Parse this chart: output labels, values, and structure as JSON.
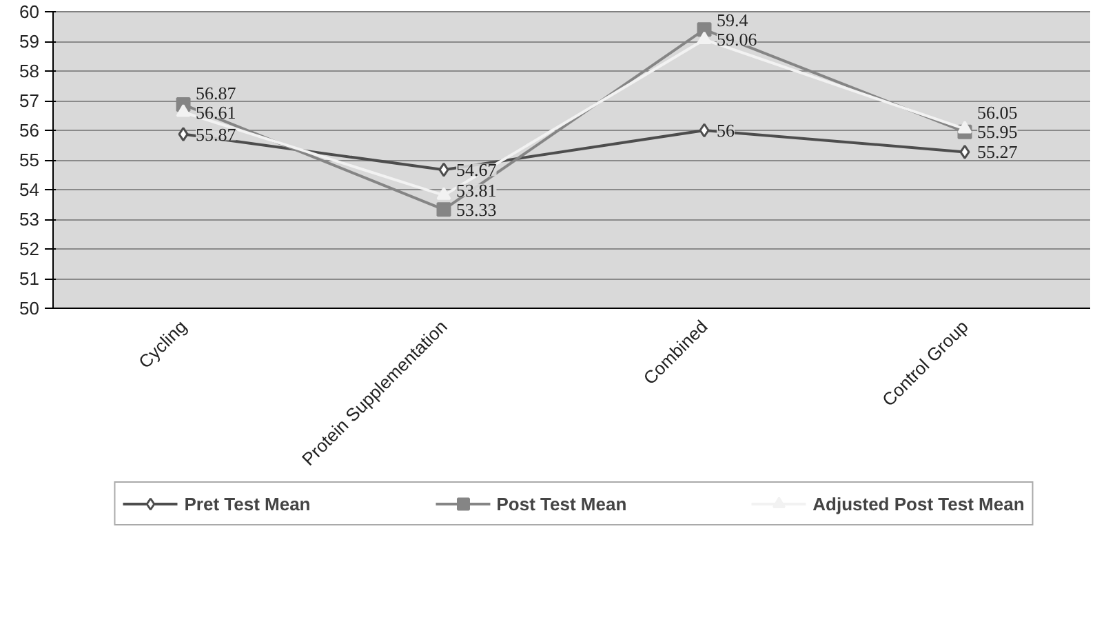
{
  "chart_data": {
    "type": "line",
    "categories": [
      "Cycling",
      "Protein Supplementation",
      "Combined",
      "Control Group"
    ],
    "series": [
      {
        "name": "Pret Test Mean",
        "color": "#4d4d4d",
        "marker": "diamond",
        "values": [
          55.87,
          54.67,
          56,
          55.27
        ]
      },
      {
        "name": "Post Test Mean",
        "color": "#858585",
        "marker": "square",
        "values": [
          56.87,
          53.33,
          59.4,
          55.95
        ]
      },
      {
        "name": "Adjusted Post Test Mean",
        "color": "#f2f2f2",
        "marker": "triangle",
        "values": [
          56.61,
          53.81,
          59.06,
          56.05
        ]
      }
    ],
    "ylim": [
      50,
      60
    ],
    "yticks": [
      50,
      51,
      52,
      53,
      54,
      55,
      56,
      57,
      58,
      59,
      60
    ],
    "grid": "y",
    "legend": "bottom",
    "data_labels": true
  }
}
